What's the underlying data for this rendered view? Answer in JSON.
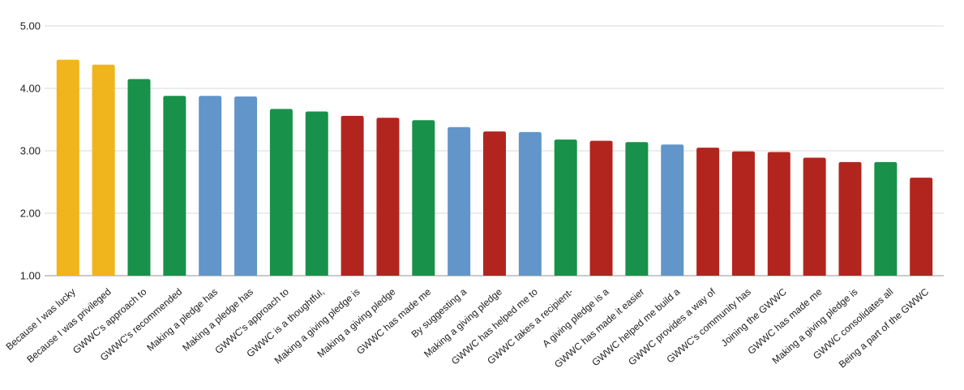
{
  "chart_data": {
    "type": "bar",
    "title": "",
    "xlabel": "",
    "ylabel": "",
    "ylim": [
      1,
      5
    ],
    "grid": true,
    "legend_position": "none",
    "background_color": "#FFFFFF",
    "gridline_color": "#D9D9D9",
    "baseline_color": "#B7B7B7",
    "axis_text_color": "#222222",
    "label_text_color": "#222222",
    "y_ticks": [
      "5.00",
      "4.00",
      "3.00",
      "2.00",
      "1.00"
    ],
    "palette": {
      "yellow": "#F0B41C",
      "green": "#18914A",
      "blue": "#6295C9",
      "red": "#B2251E"
    },
    "bars": [
      {
        "label": "Because I was lucky",
        "value": 4.46,
        "color": "yellow"
      },
      {
        "label": "Because I was privileged",
        "value": 4.38,
        "color": "yellow"
      },
      {
        "label": "GWWC's approach to",
        "value": 4.15,
        "color": "green"
      },
      {
        "label": "GWWC's recommended",
        "value": 3.88,
        "color": "green"
      },
      {
        "label": "Making a pledge has",
        "value": 3.88,
        "color": "blue"
      },
      {
        "label": "Making a pledge has",
        "value": 3.87,
        "color": "blue"
      },
      {
        "label": "GWWC's approach to",
        "value": 3.67,
        "color": "green"
      },
      {
        "label": "GWWC is a thoughtful,",
        "value": 3.63,
        "color": "green"
      },
      {
        "label": "Making a giving pledge is",
        "value": 3.56,
        "color": "red"
      },
      {
        "label": "Making a giving pledge",
        "value": 3.53,
        "color": "red"
      },
      {
        "label": "GWWC has made me",
        "value": 3.49,
        "color": "green"
      },
      {
        "label": "By suggesting a",
        "value": 3.38,
        "color": "blue"
      },
      {
        "label": "Making a giving pledge",
        "value": 3.31,
        "color": "red"
      },
      {
        "label": "GWWC has helped me to",
        "value": 3.3,
        "color": "blue"
      },
      {
        "label": "GWWC takes a recipient-",
        "value": 3.18,
        "color": "green"
      },
      {
        "label": "A giving pledge is a",
        "value": 3.16,
        "color": "red"
      },
      {
        "label": "GWWC has made it easier",
        "value": 3.14,
        "color": "green"
      },
      {
        "label": "GWWC helped me build a",
        "value": 3.1,
        "color": "blue"
      },
      {
        "label": "GWWC provides a way of",
        "value": 3.05,
        "color": "red"
      },
      {
        "label": "GWWC's community has",
        "value": 2.99,
        "color": "red"
      },
      {
        "label": "Joining the GWWC",
        "value": 2.98,
        "color": "red"
      },
      {
        "label": "GWWC has made me",
        "value": 2.89,
        "color": "red"
      },
      {
        "label": "Making a giving pledge is",
        "value": 2.82,
        "color": "red"
      },
      {
        "label": "GWWC consolidates all",
        "value": 2.82,
        "color": "green"
      },
      {
        "label": "Being a part of the GWWC",
        "value": 2.57,
        "color": "red"
      }
    ]
  }
}
